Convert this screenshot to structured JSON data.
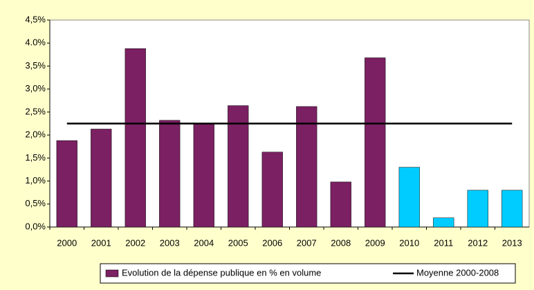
{
  "chart_data": {
    "type": "bar",
    "categories": [
      "2000",
      "2001",
      "2002",
      "2003",
      "2004",
      "2005",
      "2006",
      "2007",
      "2008",
      "2009",
      "2010",
      "2011",
      "2012",
      "2013"
    ],
    "series": [
      {
        "name": "Evolution de la dépense publique en % en volume",
        "type": "bar",
        "color": "#7b2062",
        "colors": [
          "#7b2062",
          "#7b2062",
          "#7b2062",
          "#7b2062",
          "#7b2062",
          "#7b2062",
          "#7b2062",
          "#7b2062",
          "#7b2062",
          "#7b2062",
          "#00ccff",
          "#00ccff",
          "#00ccff",
          "#00ccff"
        ],
        "values": [
          1.88,
          2.13,
          3.88,
          2.32,
          2.25,
          2.64,
          1.63,
          2.62,
          0.98,
          3.68,
          1.3,
          0.2,
          0.8,
          0.8
        ]
      },
      {
        "name": "Moyenne 2000-2008",
        "type": "line",
        "color": "#000000",
        "value": 2.25
      }
    ],
    "ylim": [
      0,
      4.5
    ],
    "yticks": [
      {
        "value": 0,
        "label": "0,0%"
      },
      {
        "value": 0.5,
        "label": "0,5%"
      },
      {
        "value": 1,
        "label": "1,0%"
      },
      {
        "value": 1.5,
        "label": "1,5%"
      },
      {
        "value": 2,
        "label": "2,0%"
      },
      {
        "value": 2.5,
        "label": "2,5%"
      },
      {
        "value": 3,
        "label": "3,0%"
      },
      {
        "value": 3.5,
        "label": "3,5%"
      },
      {
        "value": 4,
        "label": "4.0%"
      },
      {
        "value": 4.5,
        "label": "4,5%"
      }
    ],
    "legend": "bottom"
  }
}
